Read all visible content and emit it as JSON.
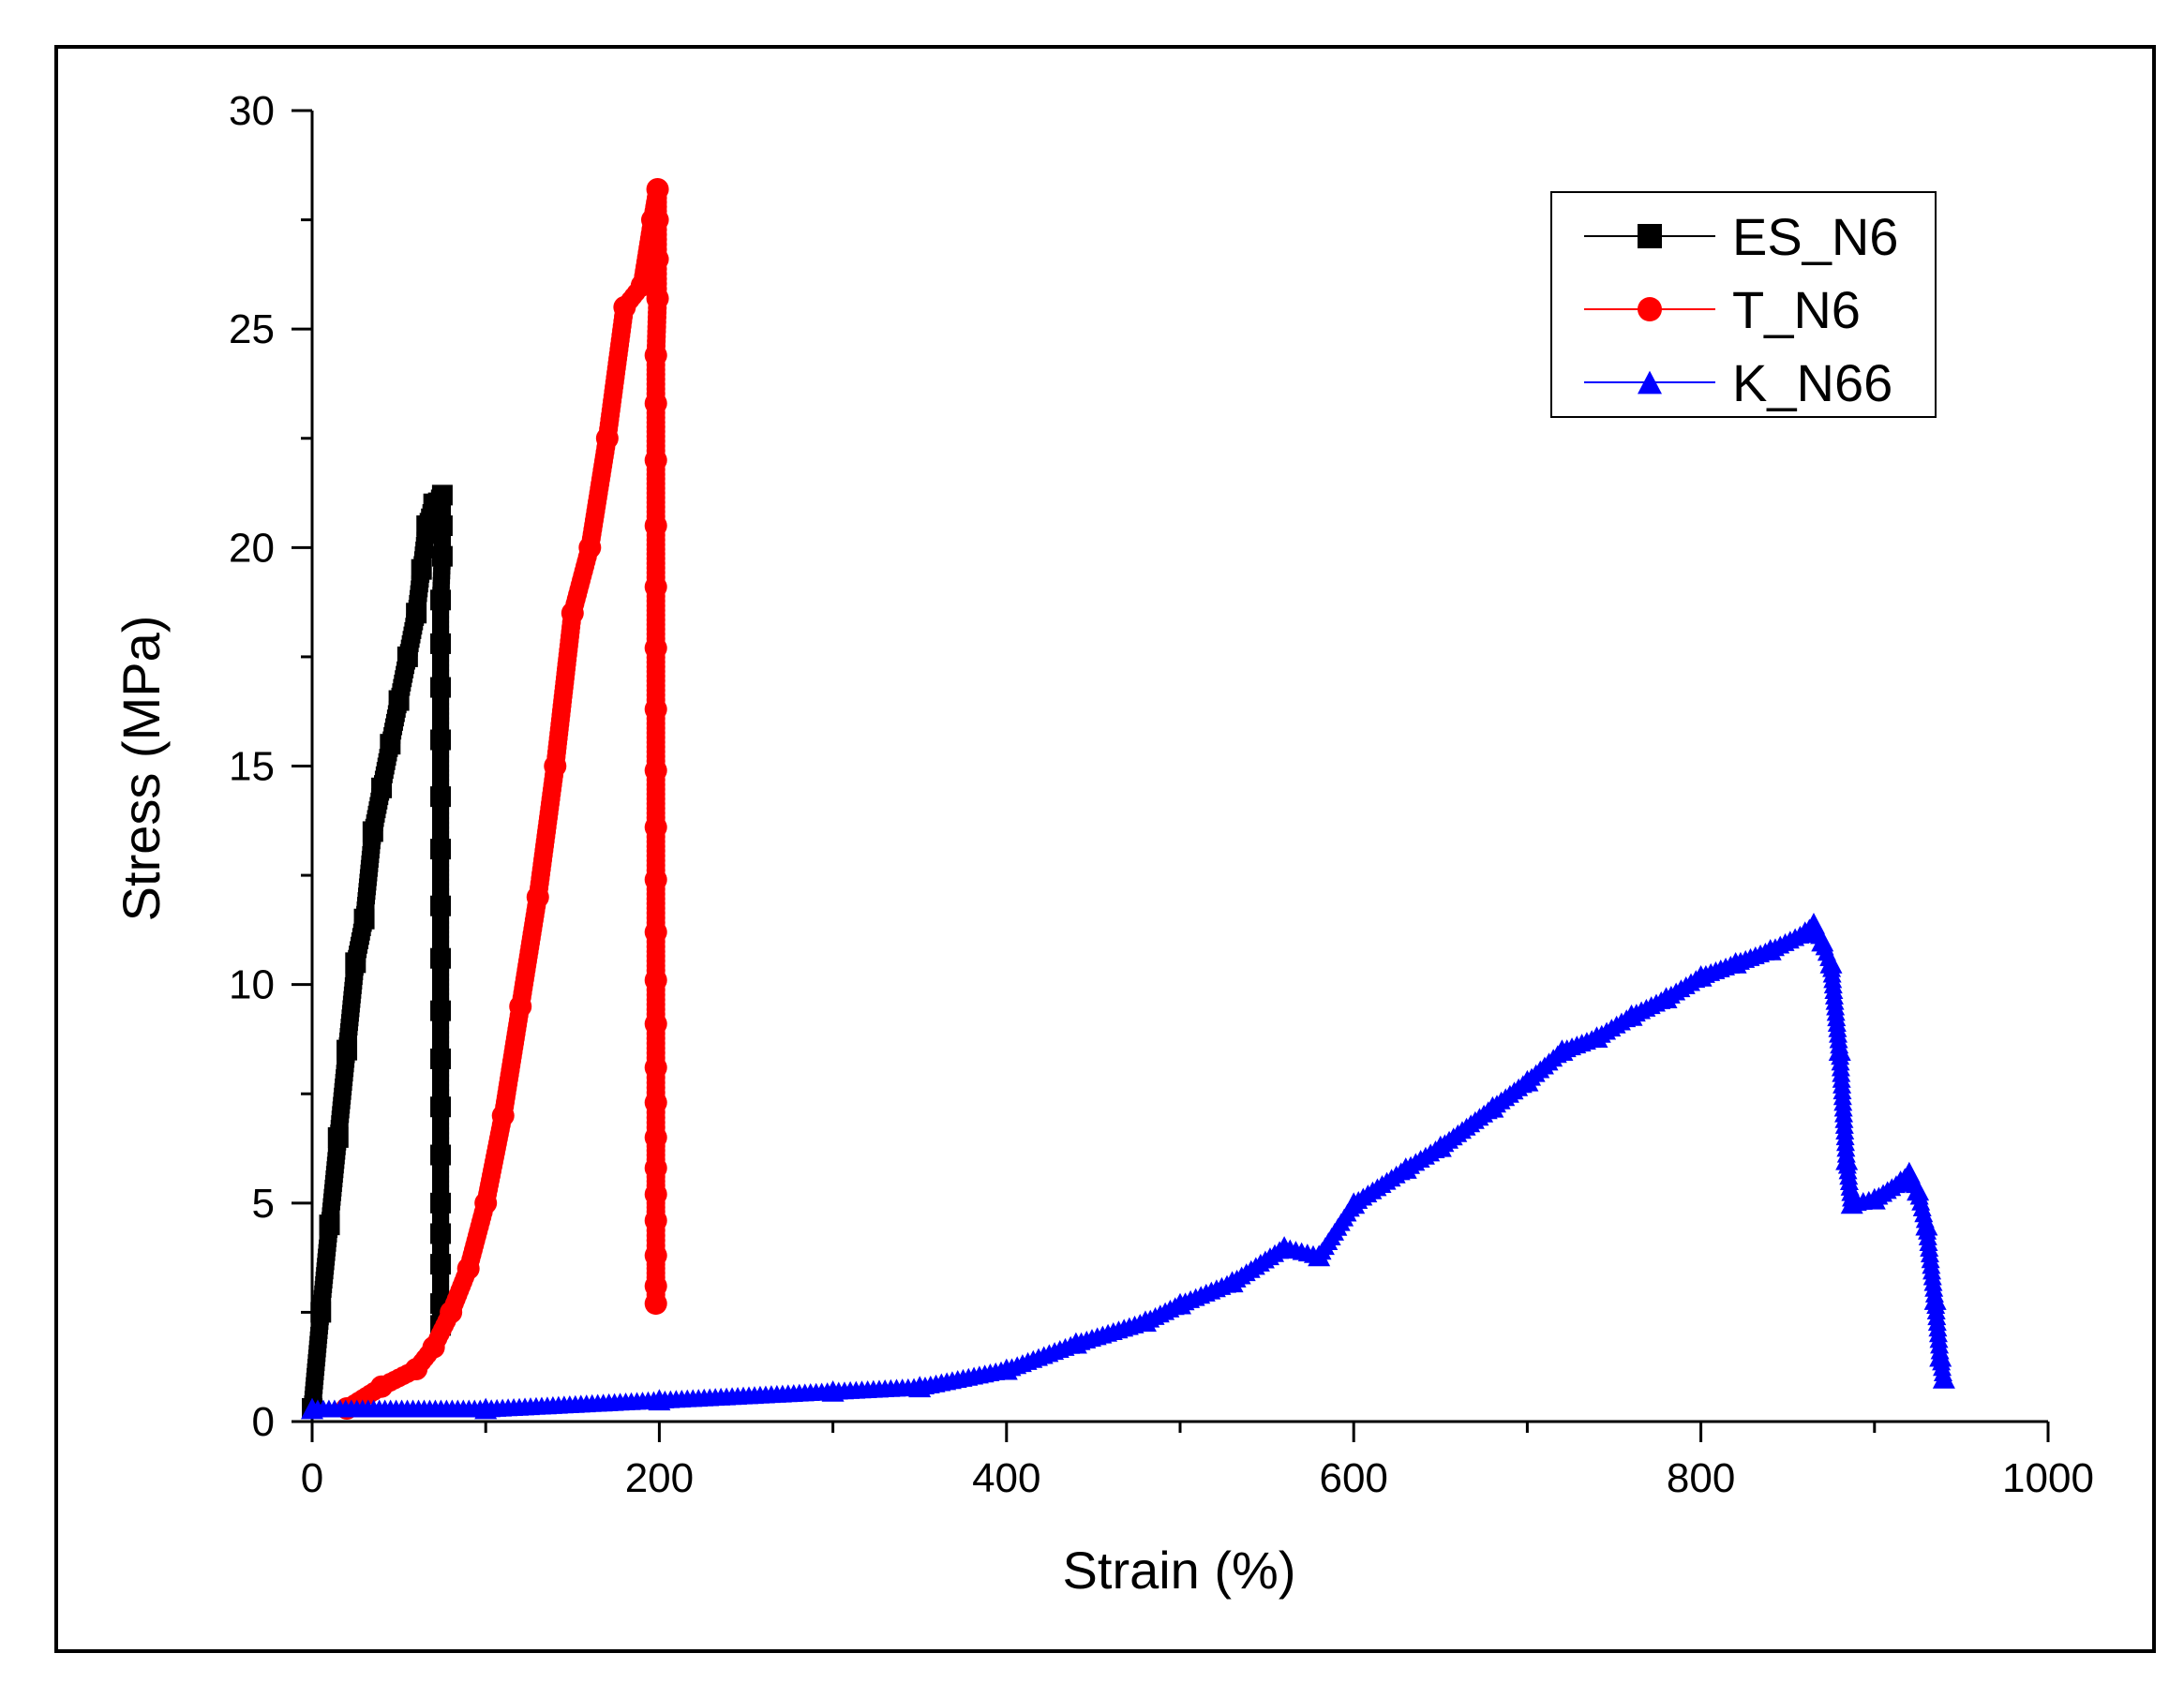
{
  "chart_data": {
    "type": "scatter",
    "title": "",
    "xlabel": "Strain (%)",
    "ylabel": "Stress (MPa)",
    "xlim": [
      0,
      1000
    ],
    "ylim": [
      0,
      30
    ],
    "xticks": [
      "0",
      "200",
      "400",
      "600",
      "800",
      "1000"
    ],
    "yticks": [
      "0",
      "5",
      "10",
      "15",
      "20",
      "25",
      "30"
    ],
    "legend_position": "top-right",
    "series": [
      {
        "name": "ES_N6",
        "color": "#000000",
        "marker": "square",
        "points": [
          [
            0,
            0.3
          ],
          [
            5,
            2.5
          ],
          [
            10,
            4.5
          ],
          [
            15,
            6.5
          ],
          [
            20,
            8.5
          ],
          [
            25,
            10.5
          ],
          [
            30,
            11.5
          ],
          [
            35,
            13.5
          ],
          [
            40,
            14.5
          ],
          [
            45,
            15.5
          ],
          [
            50,
            16.5
          ],
          [
            55,
            17.5
          ],
          [
            60,
            18.5
          ],
          [
            63,
            19.5
          ],
          [
            66,
            20.5
          ],
          [
            70,
            21
          ],
          [
            75,
            21.2
          ],
          [
            75,
            20.5
          ],
          [
            75,
            19.8
          ],
          [
            74,
            18.8
          ],
          [
            74,
            17.8
          ],
          [
            74,
            16.8
          ],
          [
            74,
            15.6
          ],
          [
            74,
            14.3
          ],
          [
            74,
            13.1
          ],
          [
            74,
            11.8
          ],
          [
            74,
            10.6
          ],
          [
            74,
            9.4
          ],
          [
            74,
            8.3
          ],
          [
            74,
            7.2
          ],
          [
            74,
            6.1
          ],
          [
            74,
            5.0
          ],
          [
            74,
            4.3
          ],
          [
            74,
            3.6
          ],
          [
            74,
            2.7
          ],
          [
            74,
            2.2
          ]
        ]
      },
      {
        "name": "T_N6",
        "color": "#ff0000",
        "marker": "circle",
        "points": [
          [
            20,
            0.3
          ],
          [
            40,
            0.8
          ],
          [
            60,
            1.2
          ],
          [
            70,
            1.7
          ],
          [
            80,
            2.5
          ],
          [
            90,
            3.5
          ],
          [
            100,
            5
          ],
          [
            110,
            7
          ],
          [
            120,
            9.5
          ],
          [
            130,
            12
          ],
          [
            140,
            15
          ],
          [
            150,
            18.5
          ],
          [
            160,
            20
          ],
          [
            170,
            22.5
          ],
          [
            180,
            25.5
          ],
          [
            190,
            26
          ],
          [
            196,
            27.5
          ],
          [
            199,
            28.2
          ],
          [
            199,
            27.5
          ],
          [
            199,
            26.6
          ],
          [
            199,
            25.7
          ],
          [
            198,
            24.4
          ],
          [
            198,
            23.3
          ],
          [
            198,
            22.0
          ],
          [
            198,
            20.5
          ],
          [
            198,
            19.1
          ],
          [
            198,
            17.7
          ],
          [
            198,
            16.3
          ],
          [
            198,
            14.9
          ],
          [
            198,
            13.6
          ],
          [
            198,
            12.4
          ],
          [
            198,
            11.2
          ],
          [
            198,
            10.1
          ],
          [
            198,
            9.1
          ],
          [
            198,
            8.1
          ],
          [
            198,
            7.3
          ],
          [
            198,
            6.5
          ],
          [
            198,
            5.8
          ],
          [
            198,
            5.2
          ],
          [
            198,
            4.6
          ],
          [
            198,
            3.8
          ],
          [
            198,
            3.1
          ],
          [
            198,
            2.7
          ]
        ]
      },
      {
        "name": "K_N66",
        "color": "#0000ff",
        "marker": "triangle",
        "points": [
          [
            0,
            0.3
          ],
          [
            100,
            0.3
          ],
          [
            200,
            0.5
          ],
          [
            300,
            0.7
          ],
          [
            350,
            0.8
          ],
          [
            400,
            1.2
          ],
          [
            440,
            1.8
          ],
          [
            480,
            2.3
          ],
          [
            500,
            2.7
          ],
          [
            530,
            3.2
          ],
          [
            560,
            4.0
          ],
          [
            580,
            3.8
          ],
          [
            600,
            5.0
          ],
          [
            630,
            5.8
          ],
          [
            650,
            6.3
          ],
          [
            680,
            7.2
          ],
          [
            700,
            7.8
          ],
          [
            720,
            8.5
          ],
          [
            740,
            8.8
          ],
          [
            760,
            9.3
          ],
          [
            780,
            9.7
          ],
          [
            800,
            10.2
          ],
          [
            820,
            10.5
          ],
          [
            840,
            10.8
          ],
          [
            860,
            11.2
          ],
          [
            865,
            11.4
          ],
          [
            870,
            11.0
          ],
          [
            875,
            10.5
          ],
          [
            880,
            8.5
          ],
          [
            884,
            6.0
          ],
          [
            887,
            5.0
          ],
          [
            900,
            5.1
          ],
          [
            915,
            5.5
          ],
          [
            920,
            5.7
          ],
          [
            925,
            5.3
          ],
          [
            930,
            4.5
          ],
          [
            935,
            2.8
          ],
          [
            938,
            1.5
          ],
          [
            940,
            1.0
          ]
        ]
      }
    ]
  }
}
